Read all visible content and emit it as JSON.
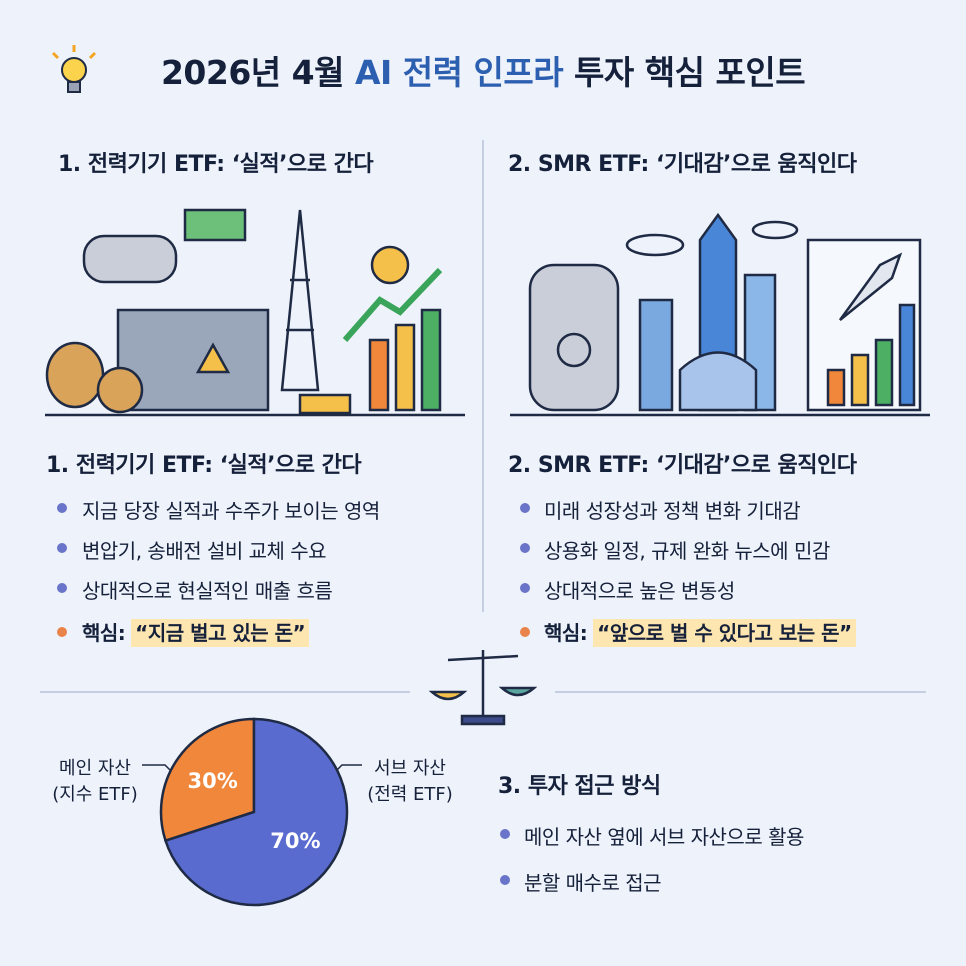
{
  "header": {
    "title_parts": [
      "2026년 4월 ",
      "AI 전력 인프라",
      " 투자 핵심 포인트"
    ]
  },
  "sections": [
    {
      "heading": "1. 전력기기 ETF: ‘실적’으로 간다",
      "bullets": [
        "지금 당장 실적과 수주가 보이는 영역",
        "변압기, 송배전 설비 교체 수요",
        "상대적으로 현실적인 매출 흐름"
      ],
      "key_label": "핵심:",
      "key_text": "“지금 벌고 있는 돈”"
    },
    {
      "heading": "2. SMR ETF: ‘기대감’으로 움직인다",
      "bullets": [
        "미래 성장성과 정책 변화 기대감",
        "상용화 일정, 규제 완화 뉴스에 민감",
        "상대적으로 높은 변동성"
      ],
      "key_label": "핵심:",
      "key_text": "“앞으로 벌 수 있다고 보는 돈”"
    },
    {
      "heading": "3. 투자 접근 방식",
      "bullets": [
        "메인 자산 옆에 서브 자산으로 활용",
        "분할 매수로 접근"
      ]
    }
  ],
  "chart_data": {
    "type": "pie",
    "categories": [
      "메인 자산",
      "서브 자산"
    ],
    "category_notes": [
      "(지수 ETF)",
      "(전력 ETF)"
    ],
    "values": [
      30,
      70
    ],
    "value_labels": [
      "30%",
      "70%"
    ],
    "colors": [
      "#f0873a",
      "#5a6bd0"
    ]
  }
}
